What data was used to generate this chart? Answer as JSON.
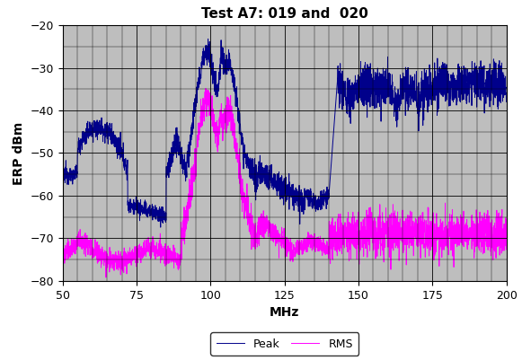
{
  "title": "Test A7: 019 and  020",
  "xlabel": "MHz",
  "ylabel": "ERP dBm",
  "xlim": [
    50,
    200
  ],
  "ylim": [
    -80,
    -20
  ],
  "xticks": [
    50,
    75,
    100,
    125,
    150,
    175,
    200
  ],
  "yticks": [
    -80,
    -70,
    -60,
    -50,
    -40,
    -30,
    -20
  ],
  "peak_color": "#00008B",
  "rms_color": "#FF00FF",
  "bg_color": "#BEBEBE",
  "grid_major_color": "#000000",
  "title_fontsize": 11,
  "axis_label_fontsize": 10,
  "tick_fontsize": 9
}
